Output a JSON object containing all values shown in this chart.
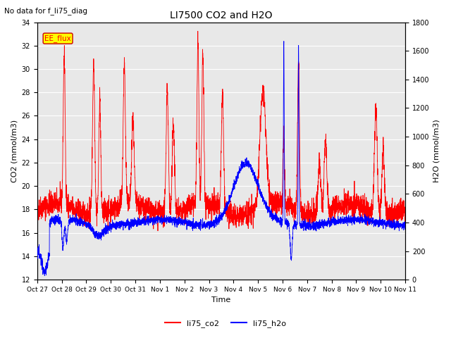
{
  "title": "LI7500 CO2 and H2O",
  "subtitle": "No data for f_li75_diag",
  "xlabel": "Time",
  "ylabel_left": "CO2 (mmol/m3)",
  "ylabel_right": "H2O (mmol/m3)",
  "ylim_left": [
    12,
    34
  ],
  "ylim_right": [
    0,
    1800
  ],
  "yticks_left": [
    12,
    14,
    16,
    18,
    20,
    22,
    24,
    26,
    28,
    30,
    32,
    34
  ],
  "yticks_right": [
    0,
    200,
    400,
    600,
    800,
    1000,
    1200,
    1400,
    1600,
    1800
  ],
  "x_tick_labels": [
    "Oct 27",
    "Oct 28",
    "Oct 29",
    "Oct 30",
    "Oct 31",
    "Nov 1",
    "Nov 2",
    "Nov 3",
    "Nov 4",
    "Nov 5",
    "Nov 6",
    "Nov 7",
    "Nov 8",
    "Nov 9",
    "Nov 10",
    "Nov 11"
  ],
  "color_co2": "#ff0000",
  "color_h2o": "#0000ff",
  "legend_label_co2": "li75_co2",
  "legend_label_h2o": "li75_h2o",
  "annotation_box": "EE_flux",
  "annotation_box_color": "#ffff00",
  "background_color": "#ffffff",
  "plot_bg_color": "#e8e8e8",
  "grid_color": "#ffffff",
  "n_points": 3360
}
